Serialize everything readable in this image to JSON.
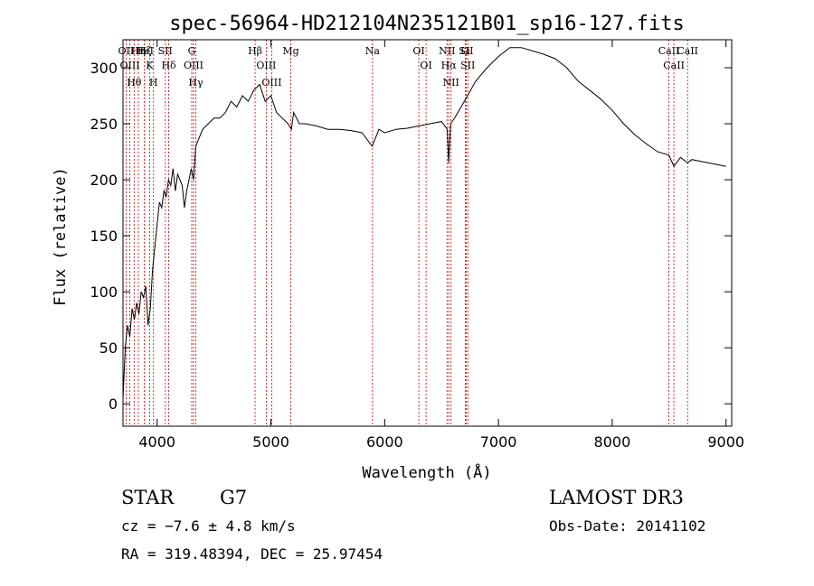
{
  "chart_data": {
    "type": "line",
    "title": "spec-56964-HD212104N235121B01_sp16-127.fits",
    "xlabel": "Wavelength (Å)",
    "ylabel": "Flux (relative)",
    "xlim": [
      3700,
      9050
    ],
    "ylim": [
      -20,
      325
    ],
    "xticks": [
      4000,
      5000,
      6000,
      7000,
      8000,
      9000
    ],
    "yticks": [
      0,
      50,
      100,
      150,
      200,
      250,
      300
    ],
    "grid": false,
    "series": [
      {
        "x": [
          3700,
          3720,
          3740,
          3760,
          3780,
          3800,
          3820,
          3840,
          3860,
          3880,
          3900,
          3920,
          3940,
          3960,
          3980,
          4000,
          4020,
          4040,
          4060,
          4080,
          4100,
          4120,
          4140,
          4160,
          4180,
          4200,
          4220,
          4240,
          4260,
          4280,
          4300,
          4320,
          4340,
          4360,
          4380,
          4400,
          4450,
          4500,
          4550,
          4600,
          4650,
          4700,
          4750,
          4800,
          4850,
          4900,
          4950,
          5000,
          5050,
          5100,
          5150,
          5180,
          5200,
          5250,
          5300,
          5400,
          5500,
          5600,
          5700,
          5800,
          5890,
          5950,
          6000,
          6100,
          6200,
          6300,
          6400,
          6500,
          6550,
          6563,
          6580,
          6620,
          6700,
          6800,
          6900,
          7000,
          7100,
          7200,
          7300,
          7400,
          7500,
          7600,
          7700,
          7800,
          7900,
          8000,
          8100,
          8200,
          8300,
          8400,
          8498,
          8542,
          8600,
          8662,
          8700,
          8800,
          8900,
          9000
        ],
        "y": [
          5,
          50,
          70,
          60,
          85,
          75,
          90,
          80,
          100,
          95,
          105,
          70,
          85,
          120,
          140,
          160,
          180,
          175,
          190,
          185,
          200,
          195,
          210,
          190,
          205,
          200,
          195,
          175,
          190,
          200,
          210,
          200,
          230,
          235,
          240,
          245,
          250,
          255,
          255,
          260,
          270,
          265,
          275,
          270,
          280,
          285,
          270,
          275,
          260,
          255,
          250,
          245,
          260,
          250,
          250,
          248,
          245,
          245,
          244,
          242,
          230,
          245,
          242,
          245,
          246,
          248,
          250,
          252,
          245,
          215,
          250,
          256,
          270,
          288,
          300,
          310,
          318,
          318,
          315,
          312,
          308,
          300,
          288,
          280,
          272,
          262,
          250,
          240,
          232,
          225,
          222,
          212,
          220,
          215,
          218,
          216,
          214,
          212
        ]
      }
    ],
    "lines": [
      {
        "label": "Hθ",
        "x": 3798
      },
      {
        "label": "OII",
        "x": 3727
      },
      {
        "label": "OIII",
        "x": 3760
      },
      {
        "label": "Hη",
        "x": 3835
      },
      {
        "label": "Hζ",
        "x": 3889
      },
      {
        "label": "K",
        "x": 3934
      },
      {
        "label": "HeI",
        "x": 3889
      },
      {
        "label": "H",
        "x": 3968
      },
      {
        "label": "SII",
        "x": 4072
      },
      {
        "label": "Hδ",
        "x": 4102
      },
      {
        "label": "OIII",
        "x": 4320
      },
      {
        "label": "Hγ",
        "x": 4340
      },
      {
        "label": "G",
        "x": 4304
      },
      {
        "label": "Hβ",
        "x": 4861
      },
      {
        "label": "OIII",
        "x": 4959
      },
      {
        "label": "OIII",
        "x": 5007
      },
      {
        "label": "Mg",
        "x": 5175
      },
      {
        "label": "Na",
        "x": 5893
      },
      {
        "label": "OI",
        "x": 6300
      },
      {
        "label": "OI",
        "x": 6364
      },
      {
        "label": "Hα",
        "x": 6563
      },
      {
        "label": "NII",
        "x": 6548
      },
      {
        "label": "NII",
        "x": 6583
      },
      {
        "label": "SII",
        "x": 6716
      },
      {
        "label": "Li",
        "x": 6708
      },
      {
        "label": "SII",
        "x": 6731
      },
      {
        "label": "CaII",
        "x": 8542
      },
      {
        "label": "CaII",
        "x": 8498
      },
      {
        "label": "CaII",
        "x": 8662
      }
    ]
  },
  "info": {
    "class_label": "STAR",
    "subclass": "G7",
    "survey": "LAMOST DR3",
    "cz": "cz = −7.6 ± 4.8 km/s",
    "obs_date": "Obs-Date: 20141102",
    "coords": "RA = 319.48394, DEC =  25.97454"
  },
  "colors": {
    "spectrum": "#000000",
    "line_markers": "#cc0000"
  }
}
